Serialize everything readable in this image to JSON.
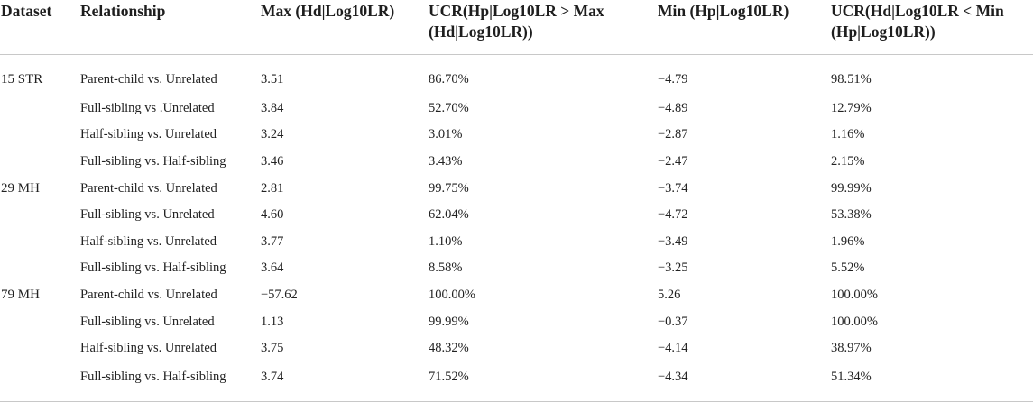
{
  "headers": {
    "dataset": "Dataset",
    "relationship": "Relationship",
    "max_hd": "Max (Hd|Log10LR)",
    "ucr_hp": "UCR(Hp|Log10LR > Max (Hd|Log10LR))",
    "min_hp": "Min (Hp|Log10LR)",
    "ucr_hd": "UCR(Hd|Log10LR < Min (Hp|Log10LR))"
  },
  "rows": [
    {
      "dataset": "15 STR",
      "relationship": "Parent-child vs. Unrelated",
      "max": "3.51",
      "ucr1": "86.70%",
      "min": "−4.79",
      "ucr2": "98.51%"
    },
    {
      "dataset": "",
      "relationship": "Full-sibling vs .Unrelated",
      "max": "3.84",
      "ucr1": "52.70%",
      "min": "−4.89",
      "ucr2": "12.79%"
    },
    {
      "dataset": "",
      "relationship": "Half-sibling vs. Unrelated",
      "max": "3.24",
      "ucr1": "3.01%",
      "min": "−2.87",
      "ucr2": "1.16%"
    },
    {
      "dataset": "",
      "relationship": "Full-sibling vs. Half-sibling",
      "max": "3.46",
      "ucr1": "3.43%",
      "min": "−2.47",
      "ucr2": "2.15%"
    },
    {
      "dataset": "29 MH",
      "relationship": "Parent-child vs. Unrelated",
      "max": "2.81",
      "ucr1": "99.75%",
      "min": "−3.74",
      "ucr2": "99.99%"
    },
    {
      "dataset": "",
      "relationship": "Full-sibling vs. Unrelated",
      "max": "4.60",
      "ucr1": "62.04%",
      "min": "−4.72",
      "ucr2": "53.38%"
    },
    {
      "dataset": "",
      "relationship": "Half-sibling vs. Unrelated",
      "max": "3.77",
      "ucr1": "1.10%",
      "min": "−3.49",
      "ucr2": "1.96%"
    },
    {
      "dataset": "",
      "relationship": "Full-sibling vs. Half-sibling",
      "max": "3.64",
      "ucr1": "8.58%",
      "min": "−3.25",
      "ucr2": "5.52%"
    },
    {
      "dataset": "79 MH",
      "relationship": "Parent-child vs. Unrelated",
      "max": "−57.62",
      "ucr1": "100.00%",
      "min": "5.26",
      "ucr2": "100.00%"
    },
    {
      "dataset": "",
      "relationship": "Full-sibling vs. Unrelated",
      "max": "1.13",
      "ucr1": "99.99%",
      "min": "−0.37",
      "ucr2": "100.00%"
    },
    {
      "dataset": "",
      "relationship": "Half-sibling vs. Unrelated",
      "max": "3.75",
      "ucr1": "48.32%",
      "min": "−4.14",
      "ucr2": "38.97%"
    },
    {
      "dataset": "",
      "relationship": "Full-sibling vs. Half-sibling",
      "max": "3.74",
      "ucr1": "71.52%",
      "min": "−4.34",
      "ucr2": "51.34%"
    }
  ]
}
